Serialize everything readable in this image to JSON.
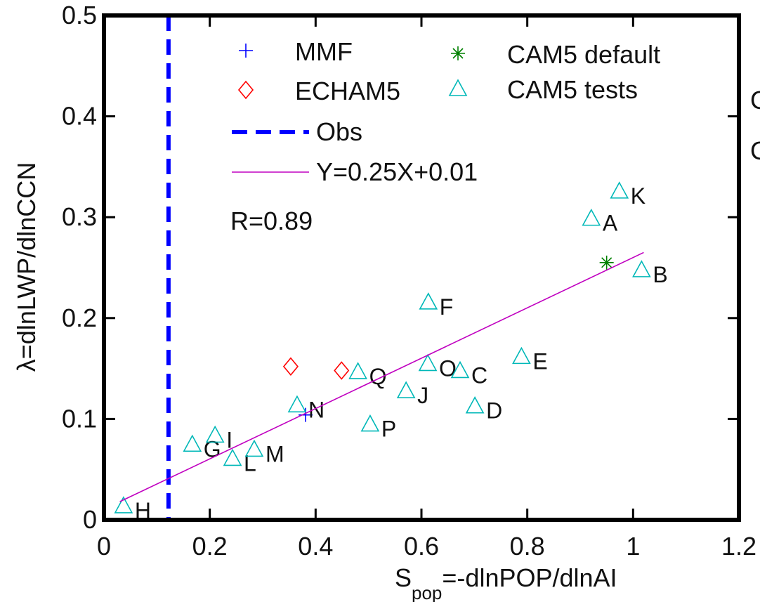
{
  "chart_data": {
    "type": "scatter",
    "x_label": {
      "main": "S",
      "sub": "pop",
      "rest": "=-dlnPOP/dlnAI"
    },
    "y_label": "λ=dlnLWP/dlnCCN",
    "annotation": "R=0.89",
    "side_text": [
      "C",
      "C"
    ],
    "xlim": [
      0,
      1.2
    ],
    "ylim": [
      0,
      0.5
    ],
    "xticks": [
      0,
      0.2,
      0.4,
      0.6,
      0.8,
      1,
      1.2
    ],
    "yticks": [
      0,
      0.1,
      0.2,
      0.3,
      0.4,
      0.5
    ],
    "series": [
      {
        "name": "MMF",
        "color": "#0000ff",
        "marker": "plus",
        "x": [
          0.381
        ],
        "values": [
          0.104
        ]
      },
      {
        "name": "ECHAM5",
        "color": "#ff0000",
        "marker": "diamond",
        "x": [
          0.353,
          0.449
        ],
        "values": [
          0.152,
          0.148
        ]
      },
      {
        "name": "CAM5 default",
        "color": "#008000",
        "marker": "asterisk",
        "x": [
          0.95
        ],
        "values": [
          0.255
        ]
      },
      {
        "name": "CAM5 tests",
        "color": "#00b8b8",
        "marker": "triangle",
        "x": [
          0.037,
          0.167,
          0.21,
          0.243,
          0.284,
          0.365,
          0.48,
          0.503,
          0.571,
          0.613,
          0.612,
          0.673,
          0.701,
          0.789,
          0.921,
          0.974,
          1.016
        ],
        "values": [
          0.014,
          0.075,
          0.084,
          0.061,
          0.07,
          0.114,
          0.147,
          0.095,
          0.128,
          0.216,
          0.155,
          0.148,
          0.113,
          0.162,
          0.299,
          0.326,
          0.248
        ],
        "point_labels": [
          "H",
          "G",
          "I",
          "L",
          "M",
          "N",
          "Q",
          "P",
          "J",
          "F",
          "O",
          "C",
          "D",
          "E",
          "A",
          "K",
          "B"
        ]
      },
      {
        "name": "Y=0.25X+0.01",
        "color": "#c000c0",
        "marker": "line",
        "x": [
          0.03,
          1.02
        ],
        "values": [
          0.018,
          0.265
        ]
      }
    ],
    "reference_lines": [
      {
        "name": "Obs",
        "color": "#0000ff",
        "x": 0.122,
        "dashed": true
      }
    ]
  }
}
